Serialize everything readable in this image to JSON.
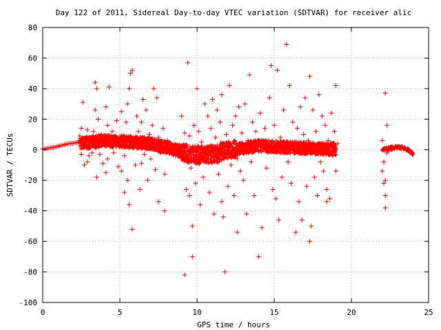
{
  "chart_data": {
    "type": "scatter",
    "title": "Day 122 of 2011, Sidereal Day-to-day VTEC variation (SDTVAR) for receiver alic",
    "xlabel": "GPS time / hours",
    "ylabel": "SDTVAR / TECUs",
    "xlim": [
      0,
      25
    ],
    "ylim": [
      -100,
      80
    ],
    "x_ticks": [
      0,
      5,
      10,
      15,
      20,
      25
    ],
    "y_ticks": [
      -100,
      -80,
      -60,
      -40,
      -20,
      0,
      20,
      40,
      60,
      80
    ],
    "x_tick_labels": [
      "0",
      "5",
      "10",
      "15",
      "20",
      "25"
    ],
    "y_tick_labels": [
      "-100",
      "-80",
      "-60",
      "-40",
      "-20",
      "0",
      "20",
      "40",
      "60",
      "80"
    ],
    "grid": true,
    "legend": "none",
    "marker": "plus",
    "color": "#ff0000",
    "series": [
      {
        "points": [
          [
            0.0,
            0.5
          ],
          [
            0.1,
            0.8
          ],
          [
            0.2,
            0.6
          ],
          [
            0.3,
            0.9
          ],
          [
            0.4,
            1.0
          ],
          [
            0.5,
            1.2
          ],
          [
            0.6,
            1.4
          ],
          [
            0.7,
            1.5
          ],
          [
            0.8,
            1.8
          ],
          [
            0.9,
            2.0
          ],
          [
            1.0,
            2.2
          ],
          [
            1.1,
            2.5
          ],
          [
            1.2,
            2.8
          ],
          [
            1.3,
            3.0
          ],
          [
            1.4,
            3.2
          ],
          [
            1.5,
            3.5
          ],
          [
            1.6,
            3.8
          ],
          [
            1.7,
            4.0
          ],
          [
            1.8,
            4.0
          ],
          [
            1.9,
            4.2
          ],
          [
            2.0,
            4.3
          ],
          [
            2.1,
            4.5
          ],
          [
            2.2,
            4.7
          ],
          [
            2.3,
            4.8
          ],
          [
            2.4,
            5.0
          ],
          [
            2.4,
            9
          ],
          [
            2.5,
            14
          ],
          [
            2.5,
            -3
          ],
          [
            2.6,
            2
          ],
          [
            2.7,
            -10
          ],
          [
            2.8,
            7
          ],
          [
            2.9,
            13
          ],
          [
            3.0,
            -4
          ],
          [
            2.6,
            31
          ],
          [
            2.9,
            -8
          ],
          [
            3.0,
            8
          ],
          [
            3.1,
            5
          ],
          [
            3.2,
            -2
          ],
          [
            3.3,
            12
          ],
          [
            3.4,
            26
          ],
          [
            3.4,
            44
          ],
          [
            3.5,
            -18
          ],
          [
            3.5,
            40
          ],
          [
            3.6,
            20
          ],
          [
            3.7,
            -3
          ],
          [
            3.8,
            10
          ],
          [
            3.9,
            -9
          ],
          [
            4.0,
            6
          ],
          [
            4.1,
            28
          ],
          [
            4.2,
            16
          ],
          [
            4.1,
            -15
          ],
          [
            4.2,
            -6
          ],
          [
            4.3,
            41
          ],
          [
            4.4,
            2
          ],
          [
            4.5,
            12
          ],
          [
            4.6,
            -2
          ],
          [
            4.7,
            7
          ],
          [
            4.8,
            19
          ],
          [
            4.9,
            -11
          ],
          [
            5.0,
            2
          ],
          [
            5.0,
            9
          ],
          [
            5.1,
            25
          ],
          [
            5.1,
            -14
          ],
          [
            5.2,
            6
          ],
          [
            5.3,
            -4
          ],
          [
            5.4,
            18
          ],
          [
            5.5,
            -20
          ],
          [
            5.5,
            30
          ],
          [
            5.6,
            40
          ],
          [
            5.6,
            -36
          ],
          [
            5.7,
            8
          ],
          [
            5.7,
            50
          ],
          [
            5.8,
            52
          ],
          [
            5.8,
            -52
          ],
          [
            5.9,
            4
          ],
          [
            6.0,
            -10
          ],
          [
            6.1,
            22
          ],
          [
            6.2,
            12
          ],
          [
            6.3,
            -26
          ],
          [
            6.4,
            18
          ],
          [
            6.4,
            -9
          ],
          [
            6.5,
            33
          ],
          [
            6.6,
            -3
          ],
          [
            6.7,
            26
          ],
          [
            6.8,
            1
          ],
          [
            6.8,
            -20
          ],
          [
            6.9,
            10
          ],
          [
            7.0,
            -6
          ],
          [
            7.1,
            16
          ],
          [
            7.2,
            40
          ],
          [
            7.3,
            -13
          ],
          [
            7.4,
            34
          ],
          [
            7.5,
            8
          ],
          [
            7.5,
            -34
          ],
          [
            7.6,
            -2
          ],
          [
            7.7,
            5
          ],
          [
            7.8,
            14
          ],
          [
            7.9,
            -16
          ],
          [
            7.9,
            -40
          ],
          [
            8.0,
            2
          ],
          [
            8.1,
            6
          ],
          [
            8.2,
            -1
          ],
          [
            8.4,
            3
          ],
          [
            8.6,
            -4
          ],
          [
            8.8,
            -2
          ],
          [
            9.0,
            22
          ],
          [
            9.1,
            -3
          ],
          [
            9.2,
            -82
          ],
          [
            9.2,
            11
          ],
          [
            9.3,
            -26
          ],
          [
            9.4,
            57
          ],
          [
            9.5,
            -30
          ],
          [
            9.5,
            9
          ],
          [
            9.6,
            -12
          ],
          [
            9.7,
            -50
          ],
          [
            9.7,
            -70
          ],
          [
            9.8,
            16
          ],
          [
            9.9,
            -22
          ],
          [
            10.0,
            40
          ],
          [
            10.0,
            -6
          ],
          [
            10.1,
            12
          ],
          [
            10.2,
            -36
          ],
          [
            10.3,
            5
          ],
          [
            10.4,
            -18
          ],
          [
            10.5,
            30
          ],
          [
            10.6,
            -8
          ],
          [
            10.7,
            22
          ],
          [
            10.8,
            -28
          ],
          [
            10.9,
            14
          ],
          [
            11.0,
            -4
          ],
          [
            11.0,
            33
          ],
          [
            11.1,
            -42
          ],
          [
            11.2,
            8
          ],
          [
            11.3,
            26
          ],
          [
            11.4,
            -16
          ],
          [
            11.5,
            18
          ],
          [
            11.6,
            -34
          ],
          [
            11.6,
            36
          ],
          [
            11.7,
            -44
          ],
          [
            11.8,
            -80
          ],
          [
            11.9,
            10
          ],
          [
            12.0,
            -24
          ],
          [
            12.1,
            42
          ],
          [
            12.2,
            -10
          ],
          [
            12.3,
            16
          ],
          [
            12.4,
            -30
          ],
          [
            12.5,
            22
          ],
          [
            12.6,
            -6
          ],
          [
            12.7,
            28
          ],
          [
            12.8,
            -14
          ],
          [
            12.9,
            11
          ],
          [
            13.0,
            -20
          ],
          [
            13.1,
            30
          ],
          [
            13.2,
            -42
          ],
          [
            13.3,
            6
          ],
          [
            13.4,
            49
          ],
          [
            13.5,
            -8
          ],
          [
            13.6,
            18
          ],
          [
            13.7,
            -30
          ],
          [
            13.8,
            12
          ],
          [
            14.0,
            -70
          ],
          [
            14.1,
            24
          ],
          [
            14.2,
            -51
          ],
          [
            14.3,
            4
          ],
          [
            14.4,
            14
          ],
          [
            14.5,
            -12
          ],
          [
            14.7,
            34
          ],
          [
            14.8,
            55
          ],
          [
            14.9,
            -26
          ],
          [
            15.0,
            16
          ],
          [
            15.1,
            -32
          ],
          [
            15.2,
            52
          ],
          [
            15.3,
            -46
          ],
          [
            15.4,
            8
          ],
          [
            15.5,
            -18
          ],
          [
            15.6,
            26
          ],
          [
            15.8,
            69
          ],
          [
            15.9,
            -8
          ],
          [
            16.0,
            42
          ],
          [
            16.1,
            -22
          ],
          [
            16.2,
            18
          ],
          [
            16.4,
            -54
          ],
          [
            16.5,
            14
          ],
          [
            16.6,
            -34
          ],
          [
            16.7,
            28
          ],
          [
            16.8,
            -46
          ],
          [
            16.9,
            10
          ],
          [
            17.0,
            34
          ],
          [
            17.1,
            -24
          ],
          [
            17.2,
            6
          ],
          [
            17.3,
            -60
          ],
          [
            17.3,
            48
          ],
          [
            17.4,
            -50
          ],
          [
            17.5,
            26
          ],
          [
            17.6,
            -18
          ],
          [
            17.7,
            12
          ],
          [
            17.8,
            -30
          ],
          [
            17.9,
            36
          ],
          [
            18.0,
            -8
          ],
          [
            18.1,
            22
          ],
          [
            18.2,
            -14
          ],
          [
            18.3,
            16
          ],
          [
            18.4,
            -26
          ],
          [
            18.5,
            6
          ],
          [
            18.6,
            -32
          ],
          [
            18.7,
            24
          ],
          [
            18.8,
            -4
          ],
          [
            18.9,
            12
          ],
          [
            19.0,
            -14
          ],
          [
            19.0,
            42
          ],
          [
            19.1,
            4
          ],
          [
            5.3,
            -28
          ],
          [
            9.6,
            -2
          ],
          [
            12.6,
            -54
          ],
          [
            18.4,
            -34
          ],
          [
            22.0,
            6
          ],
          [
            22.0,
            -14
          ],
          [
            22.1,
            -8
          ],
          [
            22.1,
            -22
          ],
          [
            22.2,
            -38
          ],
          [
            22.2,
            -30
          ],
          [
            22.2,
            -20
          ],
          [
            22.2,
            37
          ],
          [
            22.3,
            16
          ],
          [
            22.3,
            -2
          ],
          [
            22.4,
            -1
          ],
          [
            22.6,
            0
          ],
          [
            22.8,
            1
          ],
          [
            23.0,
            1.5
          ],
          [
            23.2,
            1.2
          ],
          [
            23.4,
            0.5
          ],
          [
            23.6,
            -0.5
          ],
          [
            23.8,
            -1.5
          ],
          [
            23.95,
            -3
          ]
        ]
      }
    ]
  }
}
